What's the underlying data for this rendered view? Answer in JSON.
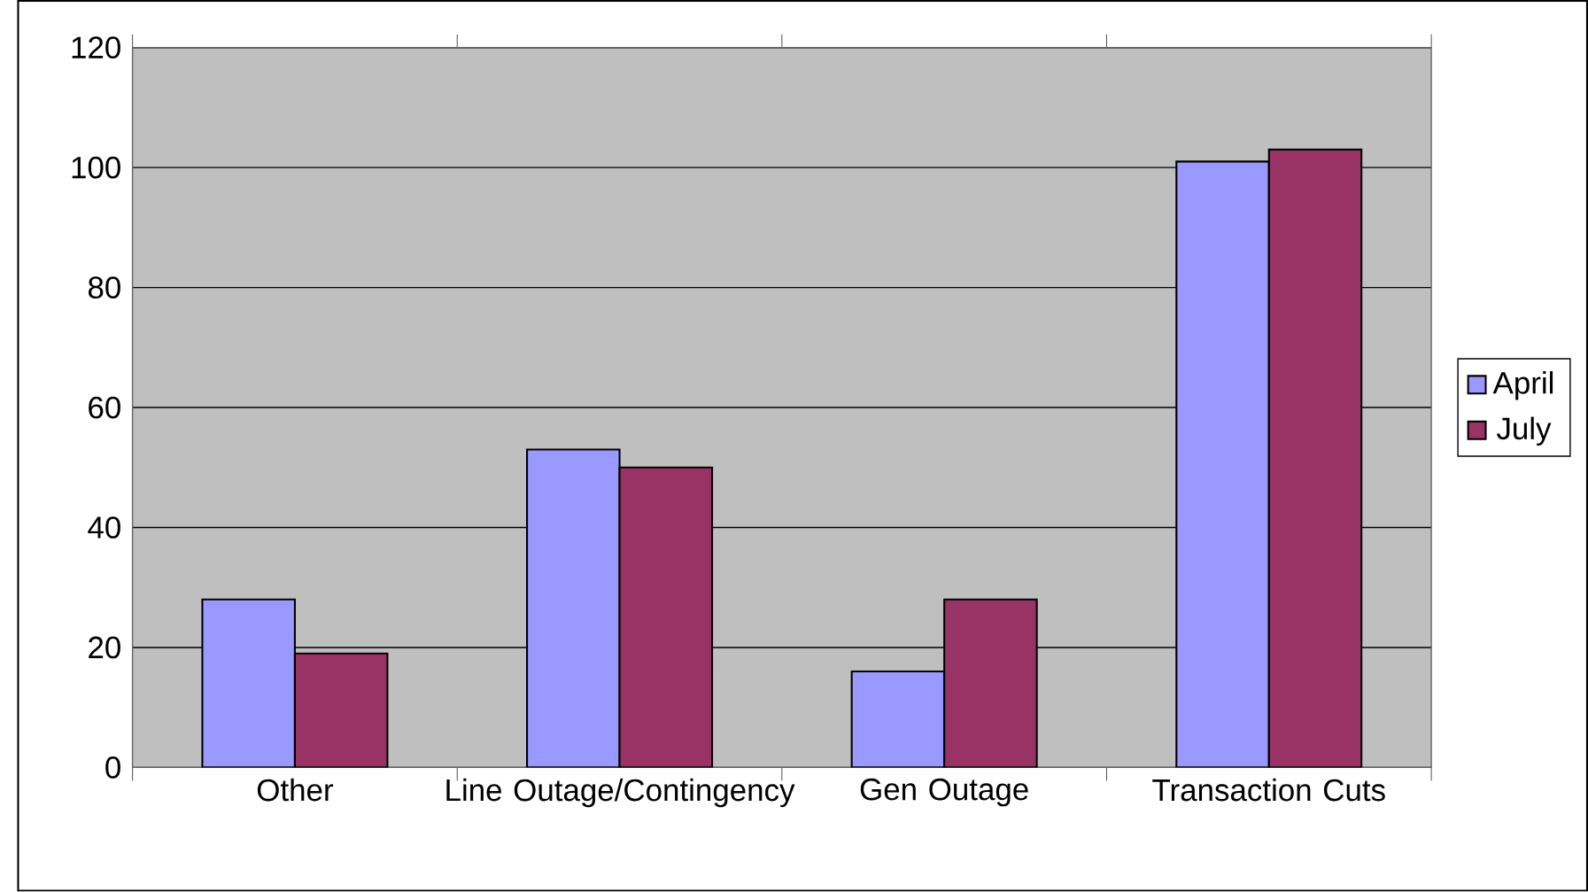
{
  "chart_data": {
    "type": "bar",
    "categories": [
      "Other",
      "Line Outage/Contingency",
      "Gen Outage",
      "Transaction Cuts"
    ],
    "series": [
      {
        "name": "April",
        "color": "#9999ff",
        "values": [
          28,
          53,
          16,
          101
        ]
      },
      {
        "name": "July",
        "color": "#993366",
        "values": [
          19,
          50,
          28,
          103
        ]
      }
    ],
    "ylim": [
      0,
      120
    ],
    "yticks": [
      0,
      20,
      40,
      60,
      80,
      100,
      120
    ],
    "grid": "y",
    "legend": "right"
  }
}
